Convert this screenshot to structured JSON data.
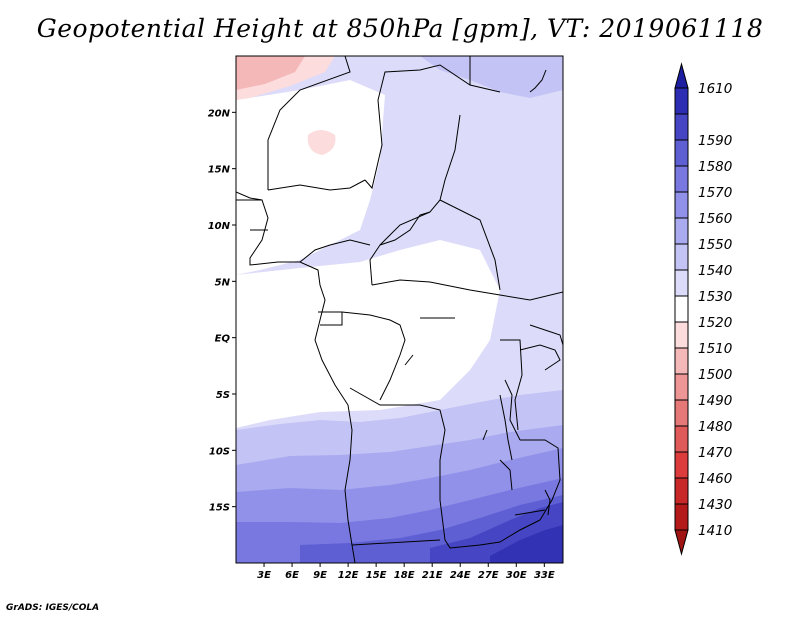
{
  "title": "Geopotential Height at 850hPa [gpm], VT: 2019061118",
  "credit": "GrADS: IGES/COLA",
  "map": {
    "lon_range": [
      0,
      35
    ],
    "lat_range": [
      -20,
      25
    ],
    "lon_ticks": [
      {
        "value": 3,
        "label": "3E"
      },
      {
        "value": 6,
        "label": "6E"
      },
      {
        "value": 9,
        "label": "9E"
      },
      {
        "value": 12,
        "label": "12E"
      },
      {
        "value": 15,
        "label": "15E"
      },
      {
        "value": 18,
        "label": "18E"
      },
      {
        "value": 21,
        "label": "21E"
      },
      {
        "value": 24,
        "label": "24E"
      },
      {
        "value": 27,
        "label": "27E"
      },
      {
        "value": 30,
        "label": "30E"
      },
      {
        "value": 33,
        "label": "33E"
      }
    ],
    "lat_ticks": [
      {
        "value": 20,
        "label": "20N"
      },
      {
        "value": 15,
        "label": "15N"
      },
      {
        "value": 10,
        "label": "10N"
      },
      {
        "value": 5,
        "label": "5N"
      },
      {
        "value": 0,
        "label": "EQ"
      },
      {
        "value": -5,
        "label": "5S"
      },
      {
        "value": -10,
        "label": "10S"
      },
      {
        "value": -15,
        "label": "15S"
      }
    ]
  },
  "colorbar": {
    "bins": [
      {
        "label": "1410",
        "color": "#b51a1a"
      },
      {
        "label": "1430",
        "color": "#c82828"
      },
      {
        "label": "1460",
        "color": "#dc3c3c"
      },
      {
        "label": "1470",
        "color": "#e05a5a"
      },
      {
        "label": "1480",
        "color": "#e67878"
      },
      {
        "label": "1490",
        "color": "#ee9696"
      },
      {
        "label": "1500",
        "color": "#f5b8b8"
      },
      {
        "label": "1510",
        "color": "#fcdcdc"
      },
      {
        "label": "1520",
        "color": "#ffffff"
      },
      {
        "label": "1530",
        "color": "#dcdcfa"
      },
      {
        "label": "1540",
        "color": "#c3c3f5"
      },
      {
        "label": "1550",
        "color": "#aaaaf0"
      },
      {
        "label": "1560",
        "color": "#9191ea"
      },
      {
        "label": "1570",
        "color": "#7878e0"
      },
      {
        "label": "1580",
        "color": "#5f5fd4"
      },
      {
        "label": "1590",
        "color": "#4646c5"
      },
      {
        "label": "1610",
        "color": "#2d2db4"
      }
    ],
    "under_color": "#a01414",
    "over_color": "#1e1ea0"
  },
  "field_colors": {
    "c1500": "#f5b8b8",
    "c1510": "#fcdcdc",
    "c1520": "#ffffff",
    "c1530": "#dcdcfa",
    "c1540": "#c3c3f5",
    "c1550": "#aaaaf0",
    "c1560": "#9191ea",
    "c1570": "#7878e0",
    "c1580": "#5f5fd4",
    "c1590": "#4646c5",
    "c1600": "#3232b4"
  }
}
